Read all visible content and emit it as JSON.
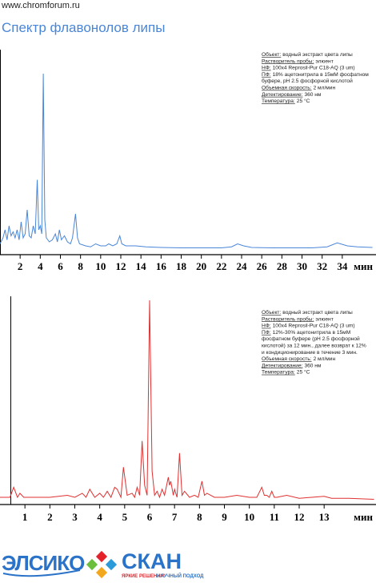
{
  "header": {
    "url": "www.chromforum.ru",
    "title": "Спектр флавонолов липы"
  },
  "chart_data": [
    {
      "type": "line",
      "color": "#4a86d8",
      "x_label": "мин",
      "xlim": [
        0,
        37.35
      ],
      "ylim": [
        0,
        100
      ],
      "xticks": [
        2,
        4,
        6,
        8,
        10,
        12,
        14,
        16,
        18,
        20,
        22,
        24,
        26,
        28,
        30,
        32,
        34
      ],
      "x": [
        0,
        0.3,
        0.5,
        0.7,
        0.9,
        1.1,
        1.3,
        1.5,
        1.7,
        1.9,
        2.1,
        2.3,
        2.5,
        2.7,
        2.9,
        3.1,
        3.3,
        3.5,
        3.7,
        3.85,
        4.0,
        4.15,
        4.3,
        4.45,
        4.6,
        4.9,
        5.2,
        5.5,
        5.7,
        5.9,
        6.1,
        6.4,
        6.7,
        7.0,
        7.2,
        7.5,
        7.7,
        7.9,
        8.5,
        9.0,
        9.5,
        10.0,
        10.5,
        10.8,
        11.2,
        11.6,
        11.9,
        12.1,
        12.5,
        13.5,
        14.5,
        16,
        18,
        20,
        22,
        23,
        23.6,
        24.2,
        25,
        27,
        29,
        31,
        32.5,
        33.5,
        34.5,
        35.5,
        37
      ],
      "values": [
        3,
        6,
        10,
        5,
        12,
        7,
        9,
        6,
        10,
        5,
        14,
        6,
        8,
        20,
        7,
        6,
        12,
        8,
        35,
        10,
        12,
        8,
        88,
        15,
        6,
        4,
        5,
        8,
        4,
        10,
        5,
        7,
        4,
        3,
        6,
        18,
        6,
        3,
        2,
        1.5,
        3,
        2,
        2,
        3,
        2,
        3,
        7,
        3,
        2,
        2,
        1.5,
        1.2,
        1,
        1,
        1,
        1.5,
        3,
        2,
        1.2,
        1,
        1,
        1,
        1.5,
        3.5,
        2,
        1.5,
        1.2
      ],
      "annotations": [
        {
          "label": "Объект:",
          "text": "водный экстракт цвета липы"
        },
        {
          "label": "Растворитель пробы:",
          "text": "элюент"
        },
        {
          "label": "НФ:",
          "text": "100х4 Reprosil-Pur C18-AQ (3 um)"
        },
        {
          "label": "ПФ:",
          "text": "18% ацетонитрила в 15мМ фосфатном"
        },
        {
          "text": "буфере, pH 2.5 фосфорной кислотой"
        },
        {
          "label": "Объемная скорость:",
          "text": "2 мл/мин"
        },
        {
          "label": "Детектирование:",
          "text": "360 нм"
        },
        {
          "label": "Температура:",
          "text": "25 °C"
        }
      ]
    },
    {
      "type": "line",
      "color": "#e03030",
      "x_label": "мин",
      "xlim": [
        0,
        15.08
      ],
      "ylim": [
        0,
        100
      ],
      "xticks": [
        1,
        2,
        3,
        4,
        5,
        6,
        7,
        8,
        9,
        10,
        11,
        12,
        13
      ],
      "x": [
        0,
        0.4,
        0.55,
        0.7,
        0.8,
        0.95,
        1.5,
        2.0,
        2.7,
        3.0,
        3.3,
        3.45,
        3.6,
        3.8,
        4.0,
        4.15,
        4.3,
        4.45,
        4.6,
        4.7,
        4.85,
        4.95,
        5.1,
        5.3,
        5.4,
        5.5,
        5.6,
        5.7,
        5.8,
        5.9,
        6.0,
        6.1,
        6.2,
        6.3,
        6.4,
        6.5,
        6.6,
        6.75,
        6.8,
        6.85,
        6.95,
        7.0,
        7.1,
        7.2,
        7.3,
        7.4,
        7.6,
        7.8,
        7.95,
        8.1,
        8.2,
        8.3,
        8.6,
        9.0,
        9.5,
        10.0,
        10.3,
        10.5,
        10.6,
        10.7,
        10.8,
        10.9,
        11.0,
        11.1,
        11.5,
        12.0,
        12.5,
        13.0,
        13.3,
        14.0,
        15.0
      ],
      "values": [
        2,
        2,
        7,
        2,
        4,
        2,
        2,
        2,
        3,
        2,
        4,
        2,
        6,
        2,
        4,
        2,
        5,
        2,
        7,
        6,
        2,
        17,
        3,
        4,
        2,
        7,
        3,
        30,
        8,
        3,
        100,
        15,
        3,
        5,
        2,
        6,
        3,
        12,
        8,
        10,
        3,
        6,
        2,
        24,
        3,
        5,
        2,
        3,
        2,
        10,
        3,
        4,
        2,
        2,
        3,
        2,
        2,
        7,
        3,
        3,
        2,
        5,
        2,
        2,
        3,
        1.5,
        2,
        2.5,
        1.5,
        1.5,
        1
      ],
      "annotations": [
        {
          "label": "Объект:",
          "text": "водный экстракт цвета липы"
        },
        {
          "label": "Растворитель пробы:",
          "text": "элюент"
        },
        {
          "label": "НФ:",
          "text": "100х4 Reprosil-Pur C18-AQ (3 um)"
        },
        {
          "label": "ПФ:",
          "text": "12%-30% ацетонитрила в 15мМ"
        },
        {
          "text": "фосфатном буфере (pH 2.5 фосфорной"
        },
        {
          "text": "кислотой) за 12 мин., далее возврат к 12%"
        },
        {
          "text": "и кондиционирование в течение 3 мин."
        },
        {
          "label": "Объемная скорость:",
          "text": "2 мл/мин"
        },
        {
          "label": "Детектирование:",
          "text": "360 нм"
        },
        {
          "label": "Температура:",
          "text": "25 °C"
        }
      ]
    }
  ],
  "footer": {
    "logo1": "ЭЛСИКО",
    "logo2": "СКАН",
    "slogan1": "ЯРКИЕ РЕШЕНИЯ",
    "slogan2": "НАУЧНЫЙ ПОДХОД"
  }
}
